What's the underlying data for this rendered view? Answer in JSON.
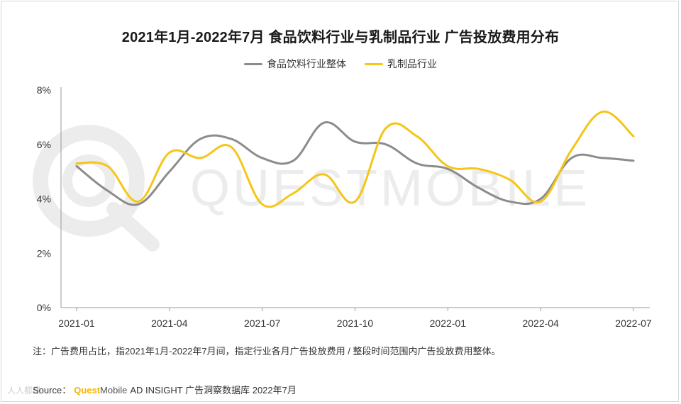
{
  "title": "2021年1月-2022年7月 食品饮料行业与乳制品行业 广告投放费用分布",
  "watermark": {
    "text": "QUESTMOBILE",
    "color": "#ececec",
    "corner_text": "人人都是"
  },
  "note": "注：广告费用占比，指2021年1月-2022年7月间，指定行业各月广告投放费用 / 整段时间范围内广告投放费用整体。",
  "source": {
    "prefix": "Source：",
    "brand_quest": "Quest",
    "brand_mobile": "Mobile",
    "suffix": "AD INSIGHT 广告洞察数据库 2022年7月"
  },
  "chart_data": {
    "type": "line",
    "title": "2021年1月-2022年7月 食品饮料行业与乳制品行业 广告投放费用分布",
    "xlabel": "",
    "ylabel": "",
    "x": [
      "2021-01",
      "2021-02",
      "2021-03",
      "2021-04",
      "2021-05",
      "2021-06",
      "2021-07",
      "2021-08",
      "2021-09",
      "2021-10",
      "2021-11",
      "2021-12",
      "2022-01",
      "2022-02",
      "2022-03",
      "2022-04",
      "2022-05",
      "2022-06",
      "2022-07"
    ],
    "x_tick_labels": [
      "2021-01",
      "2021-04",
      "2021-07",
      "2021-10",
      "2022-01",
      "2022-04",
      "2022-07"
    ],
    "x_tick_indices": [
      0,
      3,
      6,
      9,
      12,
      15,
      18
    ],
    "y_ticks": [
      0,
      2,
      4,
      6,
      8
    ],
    "y_tick_labels": [
      "0%",
      "2%",
      "4%",
      "6%",
      "8%"
    ],
    "ylim": [
      0,
      8
    ],
    "grid": false,
    "legend_position": "top-center",
    "series": [
      {
        "name": "食品饮料行业整体",
        "color": "#8c8c8c",
        "values": [
          5.2,
          4.3,
          3.8,
          5.0,
          6.2,
          6.2,
          5.5,
          5.4,
          6.8,
          6.1,
          6.0,
          5.3,
          5.1,
          4.4,
          3.9,
          4.0,
          5.5,
          5.5,
          5.4
        ]
      },
      {
        "name": "乳制品行业",
        "color": "#f5c518",
        "values": [
          5.3,
          5.2,
          3.9,
          5.7,
          5.5,
          5.9,
          3.8,
          4.2,
          4.9,
          3.9,
          6.6,
          6.3,
          5.2,
          5.1,
          4.7,
          3.9,
          5.8,
          7.2,
          6.3
        ]
      }
    ]
  }
}
